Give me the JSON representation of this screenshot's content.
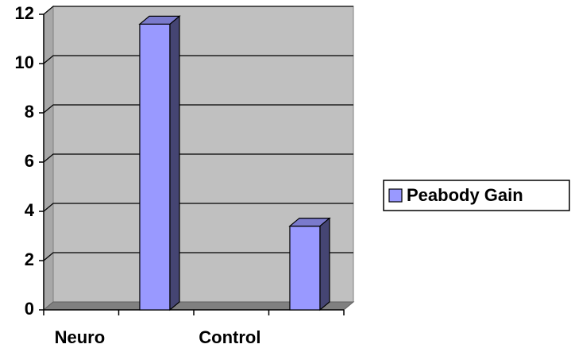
{
  "chart_data": {
    "type": "bar3d",
    "categories": [
      "Neuro",
      "Control"
    ],
    "series": [
      {
        "name": "Peabody Gain",
        "color": "#9999ff",
        "values": [
          11.6,
          3.4
        ]
      }
    ],
    "ylim": [
      0,
      12
    ],
    "yticks": [
      0,
      2,
      4,
      6,
      8,
      10,
      12
    ],
    "grid": true,
    "legend": "right"
  }
}
